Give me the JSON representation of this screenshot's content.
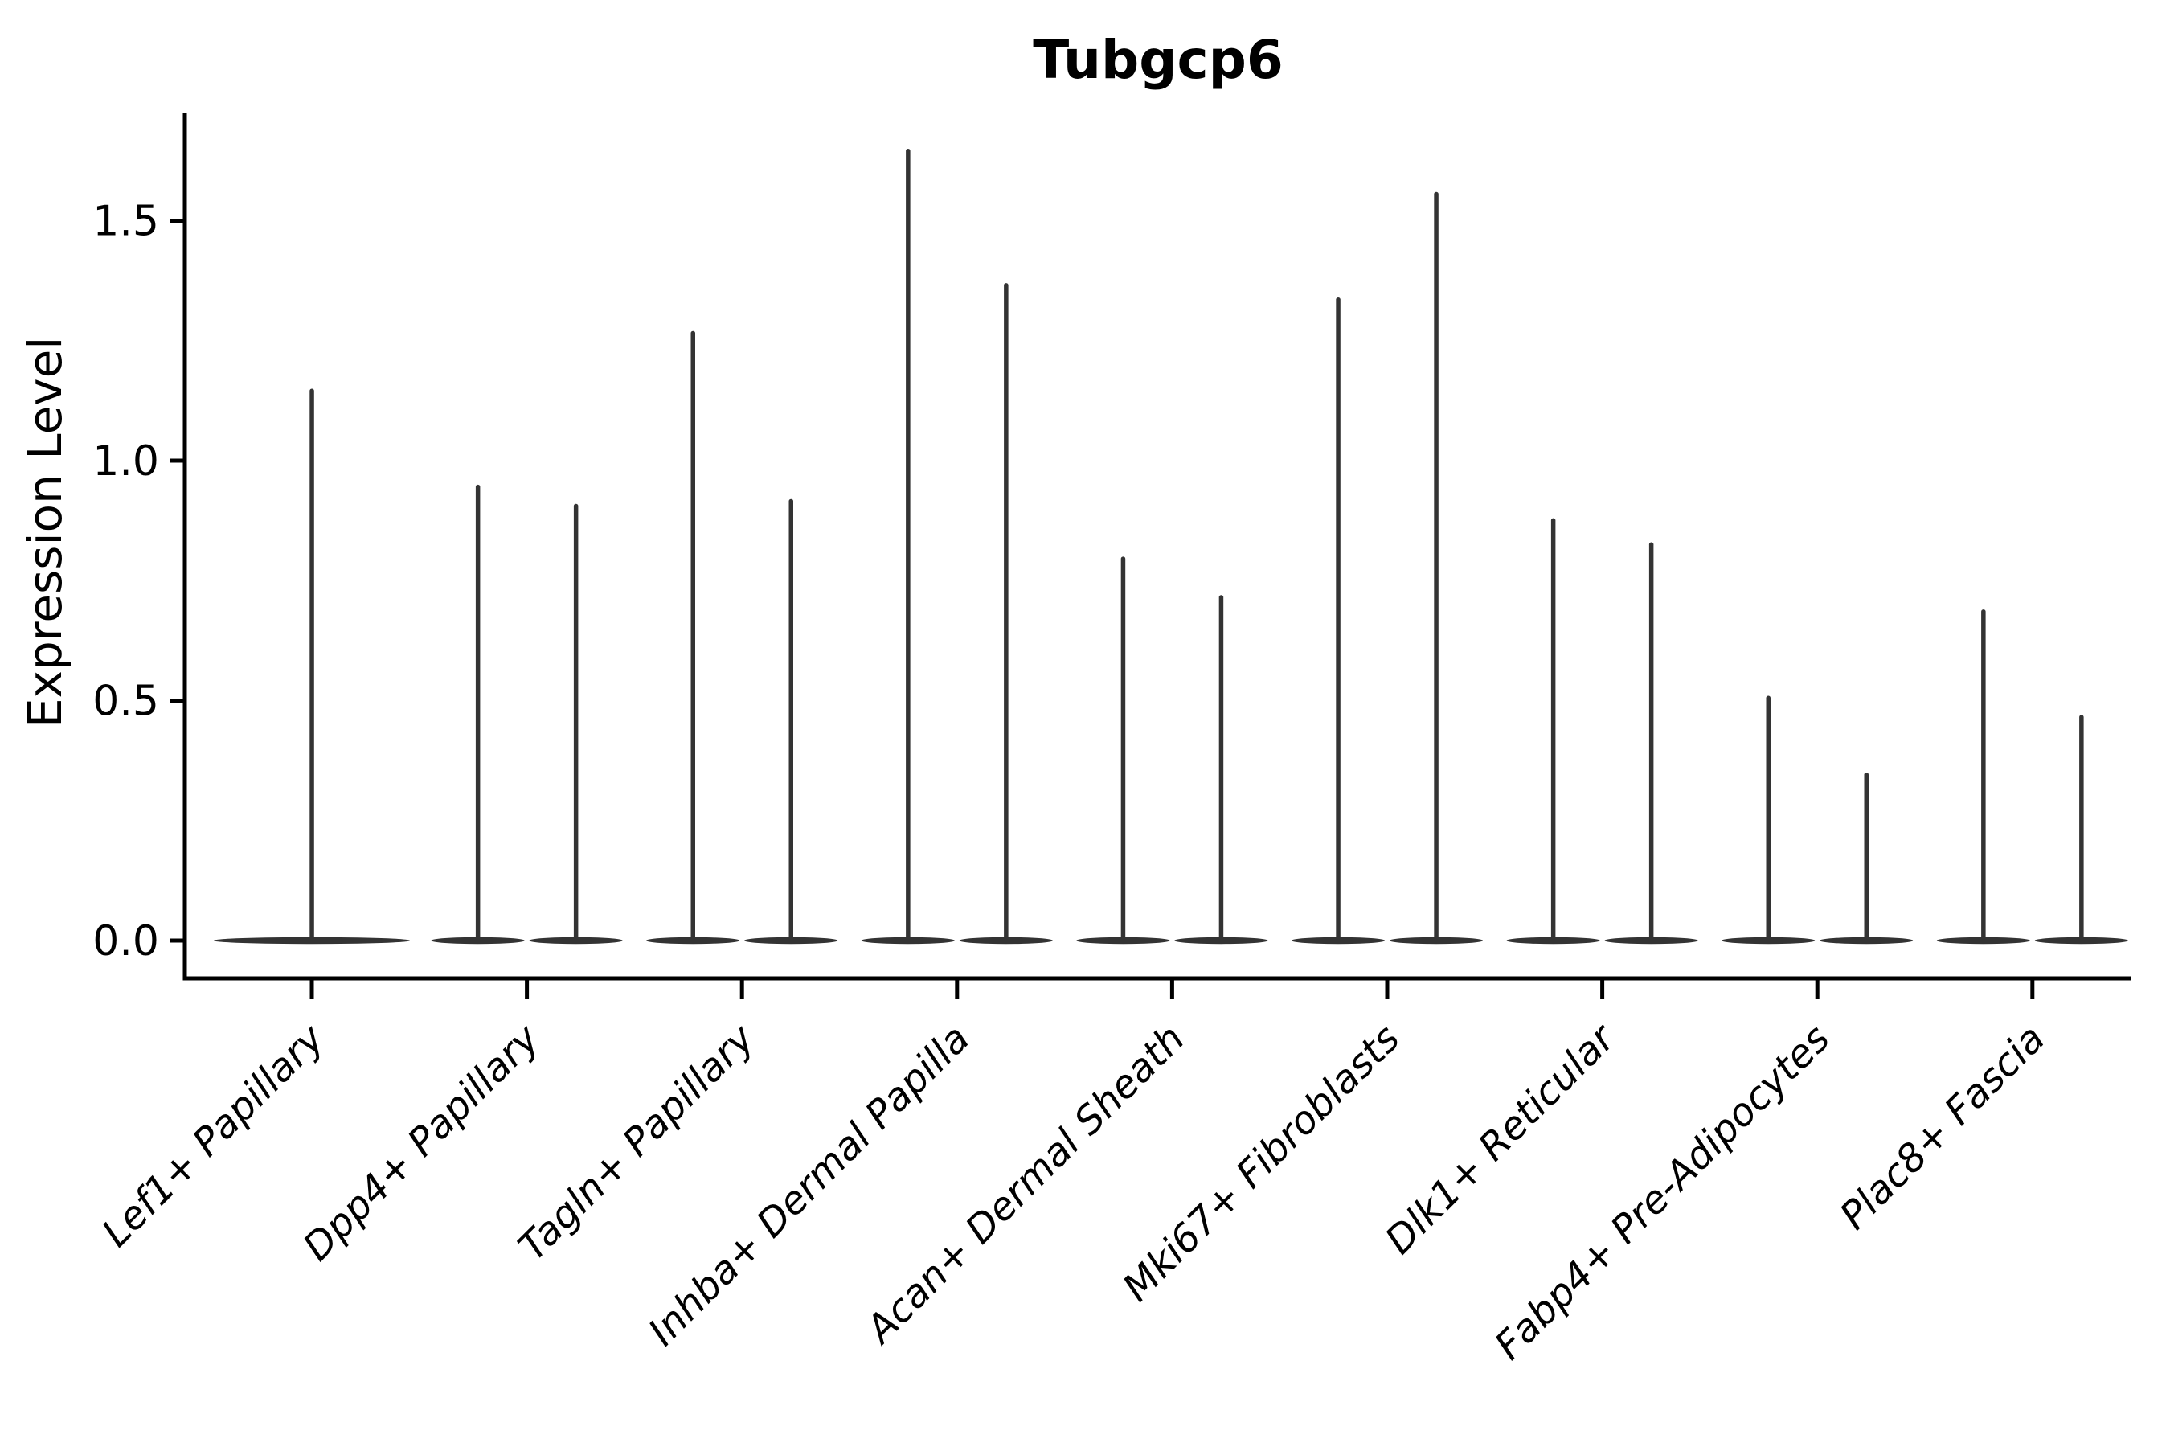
{
  "page": {
    "background": "#ffffff"
  },
  "chart_data": {
    "type": "violin",
    "title": "Tubgcp6",
    "xlabel": "",
    "ylabel": "Expression Level",
    "ytick_labels": [
      "0.0",
      "0.5",
      "1.0",
      "1.5"
    ],
    "yticks": [
      0.0,
      0.5,
      1.0,
      1.5
    ],
    "ylim": [
      -0.08,
      1.74
    ],
    "grid": false,
    "legend": "none",
    "violin_min": 0.0,
    "colors": {
      "violin": "#333333",
      "axis": "#000000",
      "text": "#000000"
    },
    "categories": [
      {
        "label": "Lef1+ Papillary",
        "violin_maxima": [
          1.15
        ]
      },
      {
        "label": "Dpp4+ Papillary",
        "violin_maxima": [
          0.95,
          0.91
        ]
      },
      {
        "label": "Tagln+ Papillary",
        "violin_maxima": [
          1.27,
          0.92
        ]
      },
      {
        "label": "Inhba+ Dermal Papilla",
        "violin_maxima": [
          1.65,
          1.37
        ]
      },
      {
        "label": "Acan+ Dermal Sheath",
        "violin_maxima": [
          0.8,
          0.72
        ]
      },
      {
        "label": "Mki67+ Fibroblasts",
        "violin_maxima": [
          1.34,
          1.56
        ]
      },
      {
        "label": "Dlk1+ Reticular",
        "violin_maxima": [
          0.88,
          0.83
        ]
      },
      {
        "label": "Fabp4+ Pre-Adipocytes",
        "violin_maxima": [
          0.51,
          0.35
        ]
      },
      {
        "label": "Plac8+ Fascia",
        "violin_maxima": [
          0.69,
          0.47
        ]
      }
    ]
  }
}
